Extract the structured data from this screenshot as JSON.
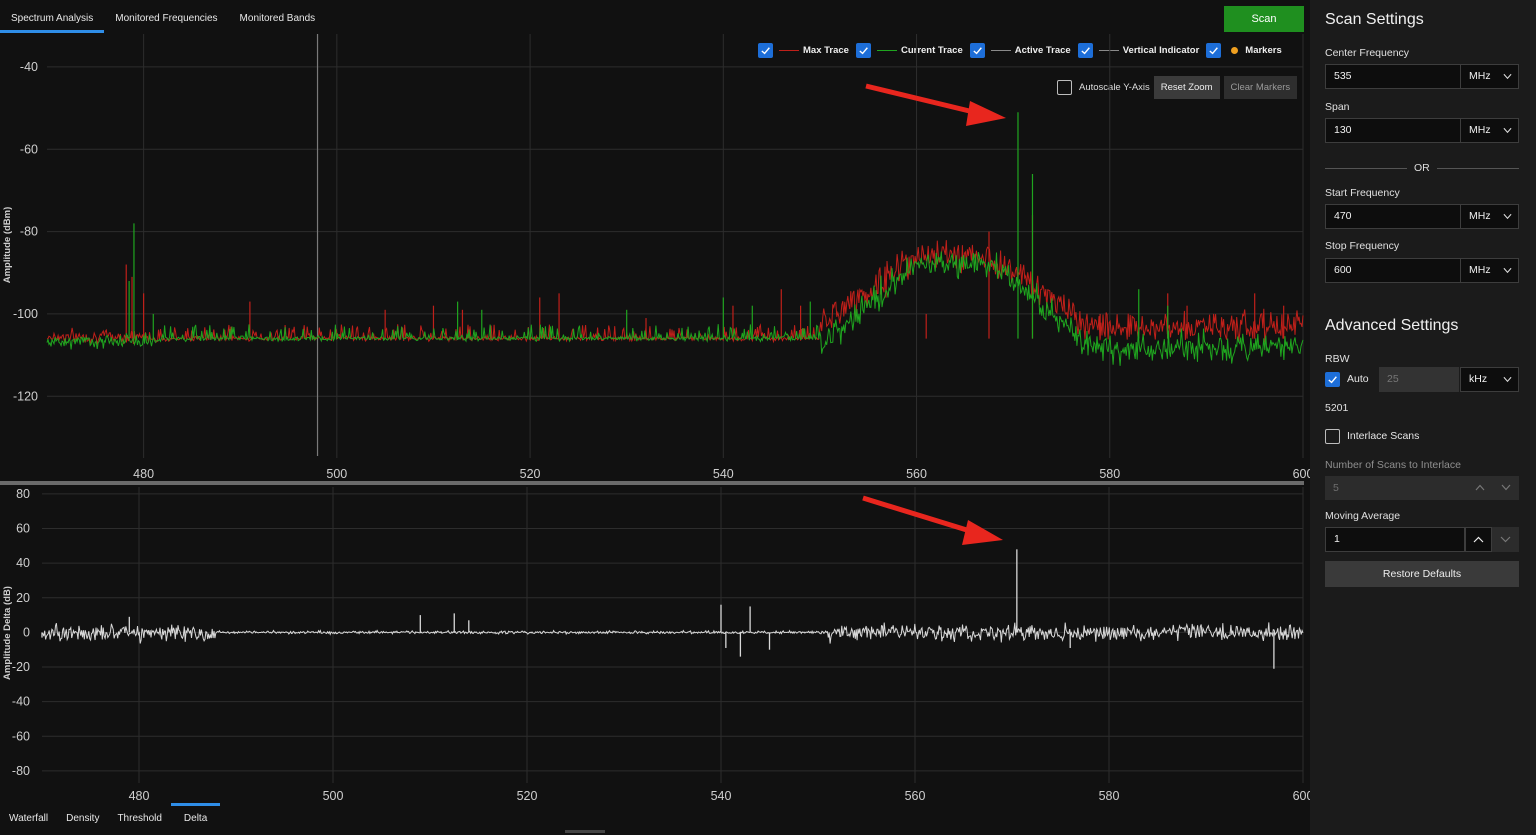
{
  "tabs_top": [
    {
      "label": "Spectrum Analysis",
      "active": true
    },
    {
      "label": "Monitored Frequencies",
      "active": false
    },
    {
      "label": "Monitored Bands",
      "active": false
    }
  ],
  "scan_label": "Scan",
  "legend": {
    "max_trace": {
      "label": "Max Trace",
      "checked": true,
      "color": "#c0201a"
    },
    "current_trace": {
      "label": "Current Trace",
      "checked": true,
      "color": "#1fa51f"
    },
    "active_trace": {
      "label": "Active Trace",
      "checked": true,
      "color": "#8a8a8a"
    },
    "vertical_indicator": {
      "label": "Vertical Indicator",
      "checked": true,
      "color": "#8a8a8a"
    },
    "markers": {
      "label": "Markers",
      "checked": true,
      "color": "#f0a020"
    }
  },
  "controls": {
    "autoscale_label": "Autoscale Y-Axis",
    "autoscale_checked": false,
    "reset_zoom_label": "Reset Zoom",
    "clear_markers_label": "Clear Markers"
  },
  "chart_data": [
    {
      "type": "line",
      "title": "",
      "xlabel": "",
      "ylabel": "Amplitude (dBm)",
      "xlim": [
        470,
        600
      ],
      "ylim": [
        -135,
        -32
      ],
      "xticks": [
        480,
        500,
        520,
        540,
        560,
        580,
        600
      ],
      "yticks": [
        -40,
        -60,
        -80,
        -100,
        -120
      ],
      "grid": true,
      "vertical_indicator_x": 498,
      "noise_floor": -106,
      "series": [
        {
          "name": "Max Trace",
          "color": "#c0201a",
          "spikes": [
            [
              478.2,
              -88
            ],
            [
              478.8,
              -91
            ],
            [
              480.0,
              -95
            ],
            [
              491.0,
              -97
            ],
            [
              505.0,
              -99
            ],
            [
              510.0,
              -98
            ],
            [
              513.0,
              -99
            ],
            [
              521.0,
              -96
            ],
            [
              523.0,
              -95
            ],
            [
              532.0,
              -101
            ],
            [
              541.0,
              -98
            ],
            [
              546.0,
              -94
            ],
            [
              548.0,
              -98
            ],
            [
              561.0,
              -100
            ],
            [
              567.5,
              -80
            ],
            [
              572.0,
              -76
            ],
            [
              579.0,
              -100
            ],
            [
              586.0,
              -95
            ],
            [
              588.0,
              -98
            ],
            [
              595.0,
              -95
            ],
            [
              598.0,
              -98
            ]
          ],
          "hump": {
            "x_start": 550,
            "x_peak_start": 560,
            "x_peak_end": 568,
            "x_end": 578,
            "floor": -103,
            "peak": -86,
            "tail_end": 600
          }
        },
        {
          "name": "Current Trace",
          "color": "#1fa51f",
          "spikes": [
            [
              479.0,
              -78
            ],
            [
              478.5,
              -92
            ],
            [
              481.0,
              -100
            ],
            [
              512.5,
              -97
            ],
            [
              515.0,
              -99
            ],
            [
              530.0,
              -99
            ],
            [
              540.0,
              -96
            ],
            [
              543.0,
              -98
            ],
            [
              549.0,
              -97
            ],
            [
              570.5,
              -51
            ],
            [
              572.0,
              -66
            ],
            [
              583.0,
              -94
            ],
            [
              586.0,
              -98
            ]
          ],
          "hump": {
            "x_start": 550,
            "x_peak_start": 560,
            "x_peak_end": 568,
            "x_end": 578,
            "floor": -108,
            "peak": -88,
            "tail_end": 600
          }
        }
      ]
    },
    {
      "type": "line",
      "title": "",
      "xlabel": "",
      "ylabel": "Amplitude Delta (dB)",
      "xlim": [
        470,
        600
      ],
      "ylim": [
        -87,
        84
      ],
      "xticks": [
        480,
        500,
        520,
        540,
        560,
        580,
        600
      ],
      "yticks": [
        80,
        60,
        40,
        20,
        0,
        -20,
        -40,
        -60,
        -80
      ],
      "grid": true,
      "series": [
        {
          "name": "Delta",
          "color": "#d8d8d8",
          "spikes": [
            [
              470.0,
              -3
            ],
            [
              479.0,
              9
            ],
            [
              509.0,
              10
            ],
            [
              512.5,
              11
            ],
            [
              514.0,
              7
            ],
            [
              540.0,
              16
            ],
            [
              540.5,
              -9
            ],
            [
              542.0,
              -14
            ],
            [
              543.0,
              15
            ],
            [
              545.0,
              -10
            ],
            [
              570.5,
              48
            ],
            [
              576.0,
              -9
            ],
            [
              597.0,
              -21
            ]
          ],
          "noise": {
            "x_start": 470,
            "x_quiet_start": 488,
            "x_quiet_end": 551,
            "x_end": 600,
            "amp_loud": 7,
            "amp_quiet": 1.2
          }
        }
      ]
    }
  ],
  "tabs_bottom": [
    {
      "label": "Waterfall",
      "active": false
    },
    {
      "label": "Density",
      "active": false
    },
    {
      "label": "Threshold",
      "active": false
    },
    {
      "label": "Delta",
      "active": true
    }
  ],
  "panel": {
    "title": "Scan Settings",
    "center_frequency": {
      "label": "Center Frequency",
      "value": "535",
      "unit": "MHz"
    },
    "span": {
      "label": "Span",
      "value": "130",
      "unit": "MHz"
    },
    "or_label": "OR",
    "start_frequency": {
      "label": "Start Frequency",
      "value": "470",
      "unit": "MHz"
    },
    "stop_frequency": {
      "label": "Stop Frequency",
      "value": "600",
      "unit": "MHz"
    },
    "advanced_title": "Advanced Settings",
    "rbw": {
      "label": "RBW",
      "auto_label": "Auto",
      "auto_checked": true,
      "value": "25",
      "unit": "kHz",
      "points": "5201"
    },
    "interlace": {
      "label": "Interlace Scans",
      "checked": false
    },
    "num_scans": {
      "label": "Number of Scans to Interlace",
      "value": "5"
    },
    "moving_average": {
      "label": "Moving Average",
      "value": "1"
    },
    "restore_label": "Restore Defaults"
  }
}
